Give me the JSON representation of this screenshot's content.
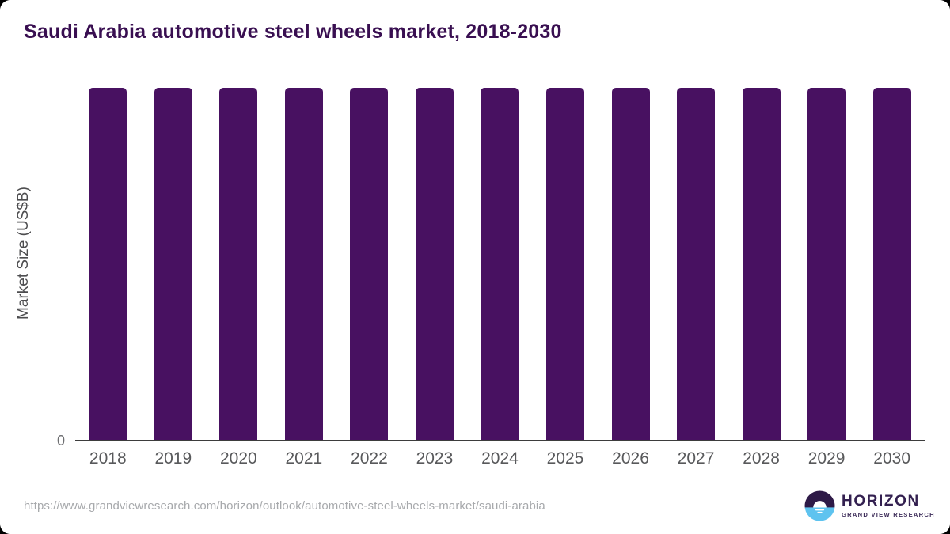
{
  "chart_data": {
    "type": "bar",
    "title": "Saudi Arabia automotive steel wheels market, 2018-2030",
    "categories": [
      "2018",
      "2019",
      "2020",
      "2021",
      "2022",
      "2023",
      "2024",
      "2025",
      "2026",
      "2027",
      "2028",
      "2029",
      "2030"
    ],
    "values": [
      1,
      1,
      1,
      1,
      1,
      1,
      1,
      1,
      1,
      1,
      1,
      1,
      1
    ],
    "value_scale": "relative-equal-height",
    "xlabel": "",
    "ylabel": "Market Size (US$B)",
    "y_tick_labels": [
      "0"
    ],
    "ylim": [
      0,
      1
    ],
    "grid": false,
    "legend": false,
    "bar_color": "#481161"
  },
  "axes": {
    "y_zero_label": "0"
  },
  "footer": {
    "source_url": "https://www.grandviewresearch.com/horizon/outlook/automotive-steel-wheels-market/saudi-arabia",
    "logo": {
      "name": "HORIZON",
      "tagline": "GRAND VIEW RESEARCH"
    }
  },
  "colors": {
    "bar": "#481161",
    "title_text": "#390f51",
    "axis_line": "#3d3d3d",
    "tick_text": "#58595b",
    "url_text": "#a7a9ac",
    "logo_purple": "#332050",
    "logo_blue": "#5ec3ef"
  }
}
